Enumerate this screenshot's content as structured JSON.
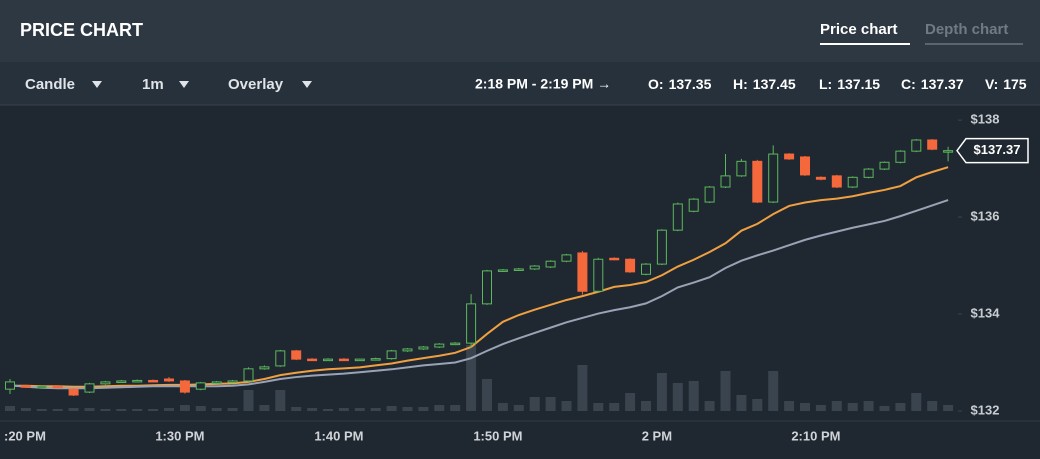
{
  "header": {
    "title": "PRICE CHART",
    "tabs": [
      "Price chart",
      "Depth chart"
    ]
  },
  "toolbar": {
    "menus": [
      "Candle",
      "1m",
      "Overlay"
    ],
    "range": "2:18 PM - 2:19 PM →",
    "stats": [
      {
        "label": "O:",
        "value": 137.35
      },
      {
        "label": "H:",
        "value": 137.45
      },
      {
        "label": "L:",
        "value": 137.15
      },
      {
        "label": "C:",
        "value": 137.37
      },
      {
        "label": "V:",
        "value": 175
      }
    ]
  },
  "chart_data": {
    "type": "candlestick",
    "categories": [
      null,
      ":20 PM",
      null,
      null,
      null,
      null,
      null,
      null,
      null,
      null,
      null,
      "1:30 PM",
      null,
      null,
      null,
      null,
      null,
      null,
      null,
      null,
      null,
      "1:40 PM",
      null,
      null,
      null,
      null,
      null,
      null,
      null,
      null,
      null,
      "1:50 PM",
      null,
      null,
      null,
      null,
      null,
      null,
      null,
      null,
      null,
      "2 PM",
      null,
      null,
      null,
      null,
      null,
      null,
      null,
      null,
      null,
      "2:10 PM",
      null,
      null,
      null,
      null,
      null,
      null,
      null,
      null
    ],
    "open": [
      132.45,
      132.52,
      132.5,
      132.51,
      132.45,
      132.39,
      132.56,
      132.6,
      132.62,
      132.63,
      132.66,
      132.62,
      132.45,
      132.58,
      132.6,
      132.62,
      132.87,
      132.93,
      133.24,
      133.07,
      133.06,
      133.07,
      133.06,
      133.07,
      133.08,
      133.24,
      133.28,
      133.32,
      133.38,
      133.4,
      134.21,
      134.89,
      134.91,
      134.93,
      134.97,
      135.09,
      135.26,
      134.47,
      135.15,
      135.13,
      134.82,
      135.03,
      135.73,
      136.12,
      136.31,
      136.62,
      136.85,
      137.15,
      136.31,
      137.3,
      137.24,
      136.82,
      136.85,
      136.62,
      136.82,
      136.99,
      137.13,
      137.36,
      137.59,
      137.35
    ],
    "high": [
      132.66,
      132.54,
      132.53,
      132.53,
      132.47,
      132.58,
      132.62,
      132.64,
      132.65,
      132.65,
      132.7,
      132.64,
      132.6,
      132.62,
      132.64,
      132.9,
      132.94,
      133.26,
      133.26,
      133.09,
      133.09,
      133.09,
      133.08,
      133.1,
      133.26,
      133.3,
      133.34,
      133.4,
      133.42,
      134.41,
      134.91,
      134.93,
      134.95,
      135.01,
      135.11,
      135.24,
      135.3,
      135.16,
      135.17,
      135.15,
      135.05,
      135.75,
      136.3,
      136.39,
      136.64,
      137.3,
      137.2,
      137.18,
      137.48,
      137.32,
      137.26,
      136.84,
      136.87,
      136.84,
      137.01,
      137.15,
      137.38,
      137.61,
      137.61,
      137.45
    ],
    "low": [
      132.35,
      132.48,
      132.48,
      132.48,
      132.31,
      132.37,
      132.54,
      132.58,
      132.6,
      132.6,
      132.6,
      132.36,
      132.43,
      132.56,
      132.58,
      132.6,
      132.85,
      132.91,
      133.05,
      133.04,
      133.04,
      133.04,
      133.04,
      133.05,
      133.06,
      133.22,
      133.26,
      133.3,
      133.36,
      133.3,
      134.19,
      134.87,
      134.89,
      134.91,
      134.95,
      135.07,
      134.4,
      134.45,
      135.11,
      134.85,
      134.8,
      135.01,
      135.71,
      136.1,
      136.29,
      136.6,
      136.83,
      136.29,
      136.29,
      137.18,
      136.85,
      136.76,
      136.6,
      136.6,
      136.8,
      136.97,
      137.11,
      137.34,
      137.38,
      137.15
    ],
    "close": [
      132.6,
      132.5,
      132.51,
      132.5,
      132.33,
      132.56,
      132.6,
      132.62,
      132.63,
      132.62,
      132.62,
      132.39,
      132.58,
      132.6,
      132.62,
      132.87,
      132.91,
      133.24,
      133.07,
      133.06,
      133.07,
      133.06,
      133.07,
      133.08,
      133.24,
      133.28,
      133.32,
      133.38,
      133.4,
      134.21,
      134.89,
      134.91,
      134.93,
      134.99,
      135.09,
      135.22,
      134.47,
      135.13,
      135.13,
      134.87,
      135.03,
      135.73,
      136.27,
      136.37,
      136.62,
      136.85,
      137.15,
      136.31,
      137.3,
      137.2,
      136.87,
      136.78,
      136.62,
      136.82,
      136.99,
      137.13,
      137.36,
      137.59,
      137.4,
      137.37
    ],
    "volume": [
      145,
      87,
      58,
      58,
      87,
      87,
      58,
      58,
      58,
      58,
      87,
      174,
      145,
      87,
      87,
      609,
      174,
      609,
      116,
      87,
      58,
      87,
      87,
      87,
      145,
      116,
      116,
      174,
      174,
      1914,
      928,
      232,
      174,
      406,
      406,
      290,
      1334,
      232,
      232,
      522,
      290,
      1102,
      812,
      870,
      290,
      1160,
      464,
      348,
      1160,
      290,
      232,
      174,
      290,
      232,
      290,
      145,
      232,
      522,
      290,
      175
    ],
    "up_color": "#5cb85c",
    "down_color": "#f4683c",
    "volume_color": "#3a444e",
    "series": [
      {
        "color": "#f0a040",
        "values": [
          132.52,
          132.52,
          132.51,
          132.51,
          132.5,
          132.5,
          132.51,
          132.52,
          132.52,
          132.53,
          132.54,
          132.54,
          132.55,
          132.56,
          132.57,
          132.6,
          132.66,
          132.74,
          132.79,
          132.83,
          132.86,
          132.88,
          132.9,
          132.94,
          132.98,
          133.04,
          133.09,
          133.14,
          133.2,
          133.32,
          133.59,
          133.84,
          133.98,
          134.09,
          134.19,
          134.29,
          134.37,
          134.46,
          134.56,
          134.6,
          134.66,
          134.8,
          134.98,
          135.12,
          135.28,
          135.46,
          135.72,
          135.86,
          136.06,
          136.23,
          136.3,
          136.35,
          136.38,
          136.43,
          136.5,
          136.56,
          136.64,
          136.82,
          136.93,
          137.03
        ]
      },
      {
        "color": "#9aa3b5",
        "values": [
          132.53,
          132.5,
          132.48,
          132.47,
          132.47,
          132.47,
          132.48,
          132.49,
          132.5,
          132.51,
          132.51,
          132.51,
          132.51,
          132.51,
          132.52,
          132.55,
          132.6,
          132.66,
          132.7,
          132.73,
          132.75,
          132.77,
          132.8,
          132.83,
          132.86,
          132.9,
          132.94,
          132.97,
          133.0,
          133.09,
          133.24,
          133.38,
          133.5,
          133.61,
          133.72,
          133.83,
          133.92,
          134.01,
          134.08,
          134.14,
          134.22,
          134.37,
          134.55,
          134.65,
          134.76,
          134.95,
          135.1,
          135.21,
          135.31,
          135.42,
          135.53,
          135.62,
          135.7,
          135.78,
          135.85,
          135.92,
          136.02,
          136.13,
          136.24,
          136.35
        ]
      }
    ],
    "ylim": [
      132,
      138.25
    ],
    "yticks": [
      {
        "value": 132,
        "label": "$132"
      },
      {
        "value": 134,
        "label": "$134"
      },
      {
        "value": 136,
        "label": "$136"
      },
      {
        "value": 138,
        "label": "$138"
      }
    ],
    "last_price": {
      "value": 137.37,
      "label": "$137.37"
    }
  }
}
